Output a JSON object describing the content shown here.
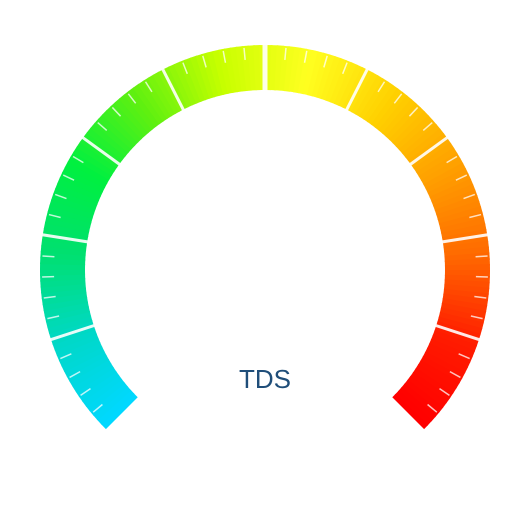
{
  "gauge": {
    "label": "TDS",
    "label_color": "#1f4e79",
    "gradient_stops": [
      {
        "color": "#00d8ff"
      },
      {
        "color": "#00d8c8"
      },
      {
        "color": "#00e070"
      },
      {
        "color": "#00f040"
      },
      {
        "color": "#60f010"
      },
      {
        "color": "#c8ff00"
      },
      {
        "color": "#ffff20"
      },
      {
        "color": "#ffd000"
      },
      {
        "color": "#ffa000"
      },
      {
        "color": "#ff6a00"
      },
      {
        "color": "#ff1c00"
      },
      {
        "color": "#ff0000"
      }
    ],
    "segment_count": 10,
    "minor_ticks_per_segment": 5
  }
}
